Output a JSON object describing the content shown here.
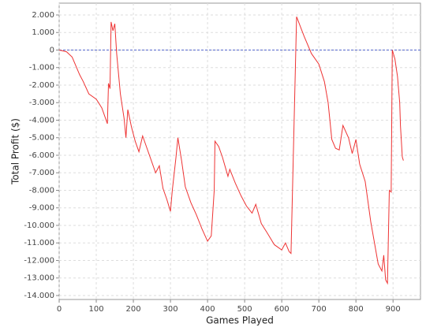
{
  "chart_data": {
    "type": "line",
    "xlabel": "Games Played",
    "ylabel": "Total Profit ($)",
    "x": [
      0,
      20,
      35,
      45,
      55,
      65,
      80,
      100,
      115,
      130,
      133,
      137,
      140,
      145,
      150,
      155,
      165,
      175,
      180,
      185,
      195,
      205,
      215,
      225,
      235,
      245,
      260,
      270,
      280,
      290,
      300,
      305,
      315,
      320,
      330,
      340,
      355,
      370,
      385,
      400,
      410,
      418,
      420,
      430,
      440,
      455,
      460,
      475,
      490,
      505,
      520,
      530,
      545,
      560,
      580,
      600,
      610,
      620,
      625,
      640,
      660,
      680,
      700,
      715,
      725,
      735,
      745,
      755,
      765,
      780,
      790,
      800,
      810,
      825,
      840,
      850,
      860,
      870,
      875,
      880,
      885,
      890,
      895,
      898,
      905,
      912,
      918,
      920,
      925,
      928
    ],
    "values": [
      0,
      -100,
      -400,
      -900,
      -1400,
      -1800,
      -2500,
      -2800,
      -3300,
      -4200,
      -1900,
      -2200,
      1600,
      1100,
      1500,
      -200,
      -2500,
      -3900,
      -5000,
      -3400,
      -4400,
      -5200,
      -5800,
      -4900,
      -5500,
      -6100,
      -7000,
      -6600,
      -7900,
      -8500,
      -9200,
      -8000,
      -6100,
      -5000,
      -6300,
      -7800,
      -8700,
      -9400,
      -10200,
      -10900,
      -10600,
      -8000,
      -5200,
      -5500,
      -6100,
      -7200,
      -6800,
      -7600,
      -8300,
      -8900,
      -9300,
      -8800,
      -9900,
      -10400,
      -11100,
      -11400,
      -11000,
      -11500,
      -11600,
      1900,
      800,
      -200,
      -800,
      -1800,
      -3000,
      -5100,
      -5600,
      -5700,
      -4300,
      -5000,
      -5900,
      -5100,
      -6500,
      -7500,
      -9800,
      -11000,
      -12200,
      -12600,
      -11700,
      -13100,
      -13300,
      -8000,
      -8100,
      0,
      -500,
      -1500,
      -3000,
      -4300,
      -6100,
      -6300
    ],
    "color": "#ee3333",
    "xlim": [
      0,
      974
    ],
    "ylim": [
      -14225,
      2674
    ],
    "xticks": [
      0,
      100,
      200,
      300,
      400,
      500,
      600,
      700,
      800,
      900
    ],
    "yticks": [
      {
        "value": 2000,
        "label": "2.000"
      },
      {
        "value": 1000,
        "label": "1.000"
      },
      0,
      {
        "value": -1000,
        "label": "-1.000"
      },
      {
        "value": -2000,
        "label": "-2.000"
      },
      {
        "value": -3000,
        "label": "-3.000"
      },
      {
        "value": -4000,
        "label": "-4.000"
      },
      {
        "value": -5000,
        "label": "-5.000"
      },
      {
        "value": -6000,
        "label": "-6.000"
      },
      {
        "value": -7000,
        "label": "-7.000"
      },
      {
        "value": -8000,
        "label": "-8.000"
      },
      {
        "value": -9000,
        "label": "-9.000"
      },
      {
        "value": -10000,
        "label": "-10.000"
      },
      {
        "value": -11000,
        "label": "-11.000"
      },
      {
        "value": -12000,
        "label": "-12.000"
      },
      {
        "value": -13000,
        "label": "-13.000"
      },
      {
        "value": -14000,
        "label": "-14.000"
      }
    ],
    "grid": true,
    "zero_line": true
  }
}
